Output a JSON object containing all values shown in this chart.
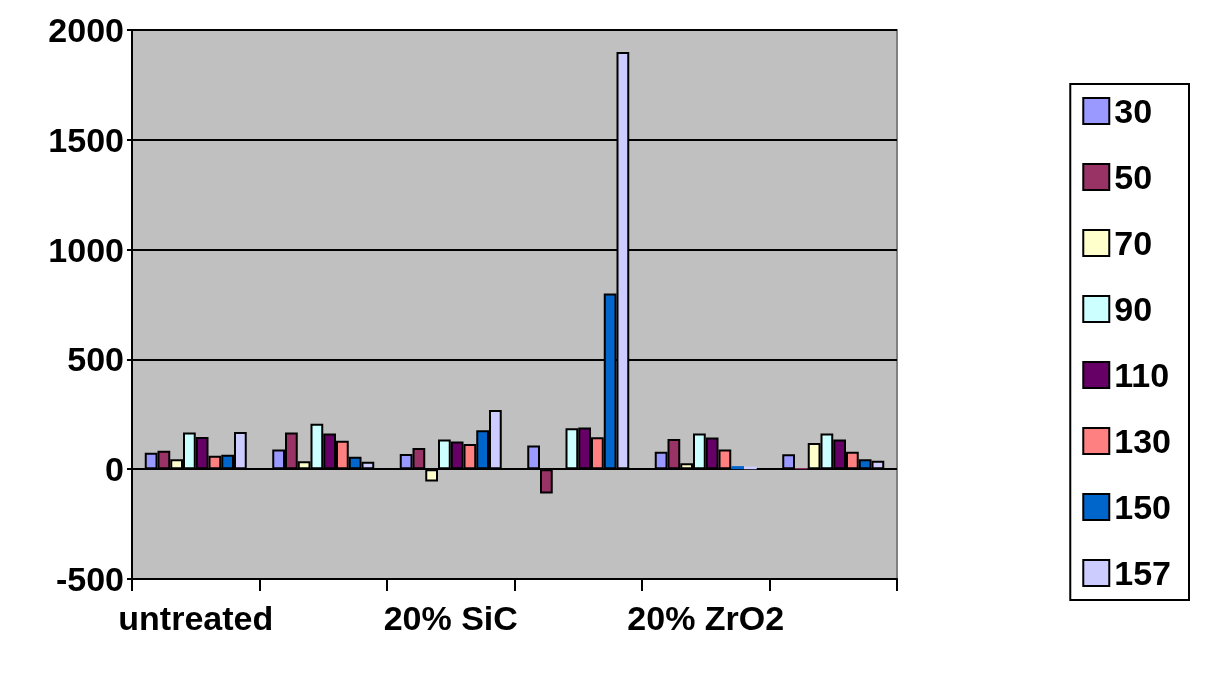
{
  "chart_data": {
    "type": "bar",
    "categories": [
      "untreated",
      null,
      "20% SiC",
      null,
      "20% ZrO2",
      null
    ],
    "series": [
      {
        "name": "30",
        "color": "#9999ff",
        "values": [
          75,
          90,
          69,
          108,
          80,
          68
        ]
      },
      {
        "name": "50",
        "color": "#993366",
        "values": [
          84,
          167,
          96,
          -111,
          138,
          5
        ]
      },
      {
        "name": "70",
        "color": "#ffffcc",
        "values": [
          45,
          36,
          -56,
          null,
          27,
          119
        ]
      },
      {
        "name": "90",
        "color": "#ccffff",
        "values": [
          167,
          207,
          135,
          187,
          163,
          163
        ]
      },
      {
        "name": "110",
        "color": "#660066",
        "values": [
          147,
          162,
          126,
          190,
          144,
          135
        ]
      },
      {
        "name": "130",
        "color": "#ff8080",
        "values": [
          61,
          129,
          115,
          145,
          90,
          80
        ]
      },
      {
        "name": "150",
        "color": "#0066cc",
        "values": [
          66,
          57,
          177,
          800,
          14,
          45
        ]
      },
      {
        "name": "157",
        "color": "#ccccff",
        "values": [
          169,
          34,
          270,
          1900,
          12,
          39
        ]
      }
    ],
    "ylim": [
      -500,
      2000
    ],
    "yticks": [
      -500,
      0,
      500,
      1000,
      1500,
      2000
    ],
    "grid": "y",
    "legend": "right"
  }
}
